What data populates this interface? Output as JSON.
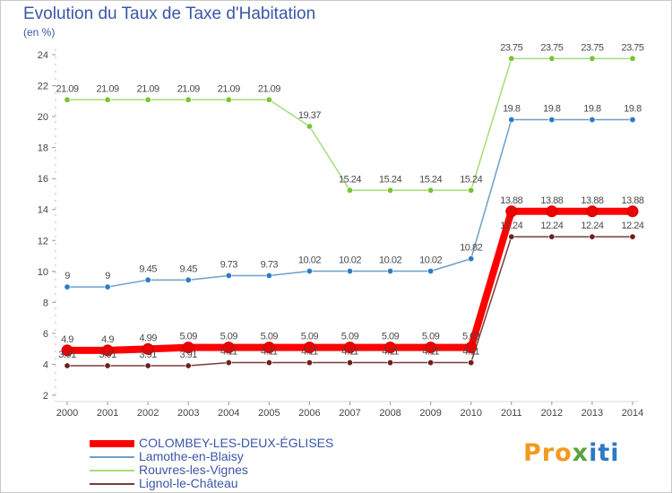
{
  "title": "Evolution du Taux de Taxe d'Habitation",
  "unit": "(en %)",
  "chart_data": {
    "type": "line",
    "title": "Evolution du Taux de Taxe d'Habitation",
    "ylabel": "(en %)",
    "x": [
      2000,
      2001,
      2002,
      2003,
      2004,
      2005,
      2006,
      2007,
      2008,
      2009,
      2010,
      2011,
      2012,
      2013,
      2014
    ],
    "ylim": [
      2,
      24
    ],
    "yticks": [
      2,
      4,
      6,
      8,
      10,
      12,
      14,
      16,
      18,
      20,
      22,
      24
    ],
    "grid": false,
    "legend_position": "bottom-left",
    "series": [
      {
        "name": "COLOMBEY-LES-DEUX-ÉGLISES",
        "color": "#ff0000",
        "dot_color": "#ee0000",
        "values": [
          4.9,
          4.9,
          4.99,
          5.09,
          5.09,
          5.09,
          5.09,
          5.09,
          5.09,
          5.09,
          5.09,
          13.88,
          13.88,
          13.88,
          13.88
        ],
        "labels": [
          "4.9",
          "4.9",
          "4.99",
          "5.09",
          "5.09",
          "5.09",
          "5.09",
          "5.09",
          "5.09",
          "5.09",
          "5.09",
          "13.88",
          "13.88",
          "13.88",
          "13.88"
        ]
      },
      {
        "name": "Lamothe-en-Blaisy",
        "color": "#6f9ec9",
        "dot_color": "#2e7bc2",
        "values": [
          9,
          9,
          9.45,
          9.45,
          9.73,
          9.73,
          10.02,
          10.02,
          10.02,
          10.02,
          10.82,
          19.8,
          19.8,
          19.8,
          19.8
        ],
        "labels": [
          "9",
          "9",
          "9.45",
          "9.45",
          "9.73",
          "9.73",
          "10.02",
          "10.02",
          "10.02",
          "10.02",
          "10.82",
          "19.8",
          "19.8",
          "19.8",
          "19.8"
        ]
      },
      {
        "name": "Rouvres-les-Vignes",
        "color": "#a6db7a",
        "dot_color": "#76c534",
        "values": [
          21.09,
          21.09,
          21.09,
          21.09,
          21.09,
          21.09,
          19.37,
          15.24,
          15.24,
          15.24,
          15.24,
          23.75,
          23.75,
          23.75,
          23.75
        ],
        "labels": [
          "21.09",
          "21.09",
          "21.09",
          "21.09",
          "21.09",
          "21.09",
          "19.37",
          "15.24",
          "15.24",
          "15.24",
          "15.24",
          "23.75",
          "23.75",
          "23.75",
          "23.75"
        ]
      },
      {
        "name": "Lignol-le-Château",
        "color": "#7a3b3b",
        "dot_color": "#6e1e1e",
        "values": [
          3.91,
          3.91,
          3.91,
          3.91,
          4.11,
          4.11,
          4.11,
          4.11,
          4.11,
          4.11,
          4.11,
          12.24,
          12.24,
          12.24,
          12.24
        ],
        "labels": [
          "3.91",
          "3.91",
          "3.91",
          "3.91",
          "4.11",
          "4.11",
          "4.11",
          "4.11",
          "4.11",
          "4.11",
          "4.11",
          "12.24",
          "12.24",
          "12.24",
          "12.24"
        ]
      }
    ]
  },
  "logo": {
    "part1": "Pro",
    "part2": "x",
    "part3": "iti"
  }
}
